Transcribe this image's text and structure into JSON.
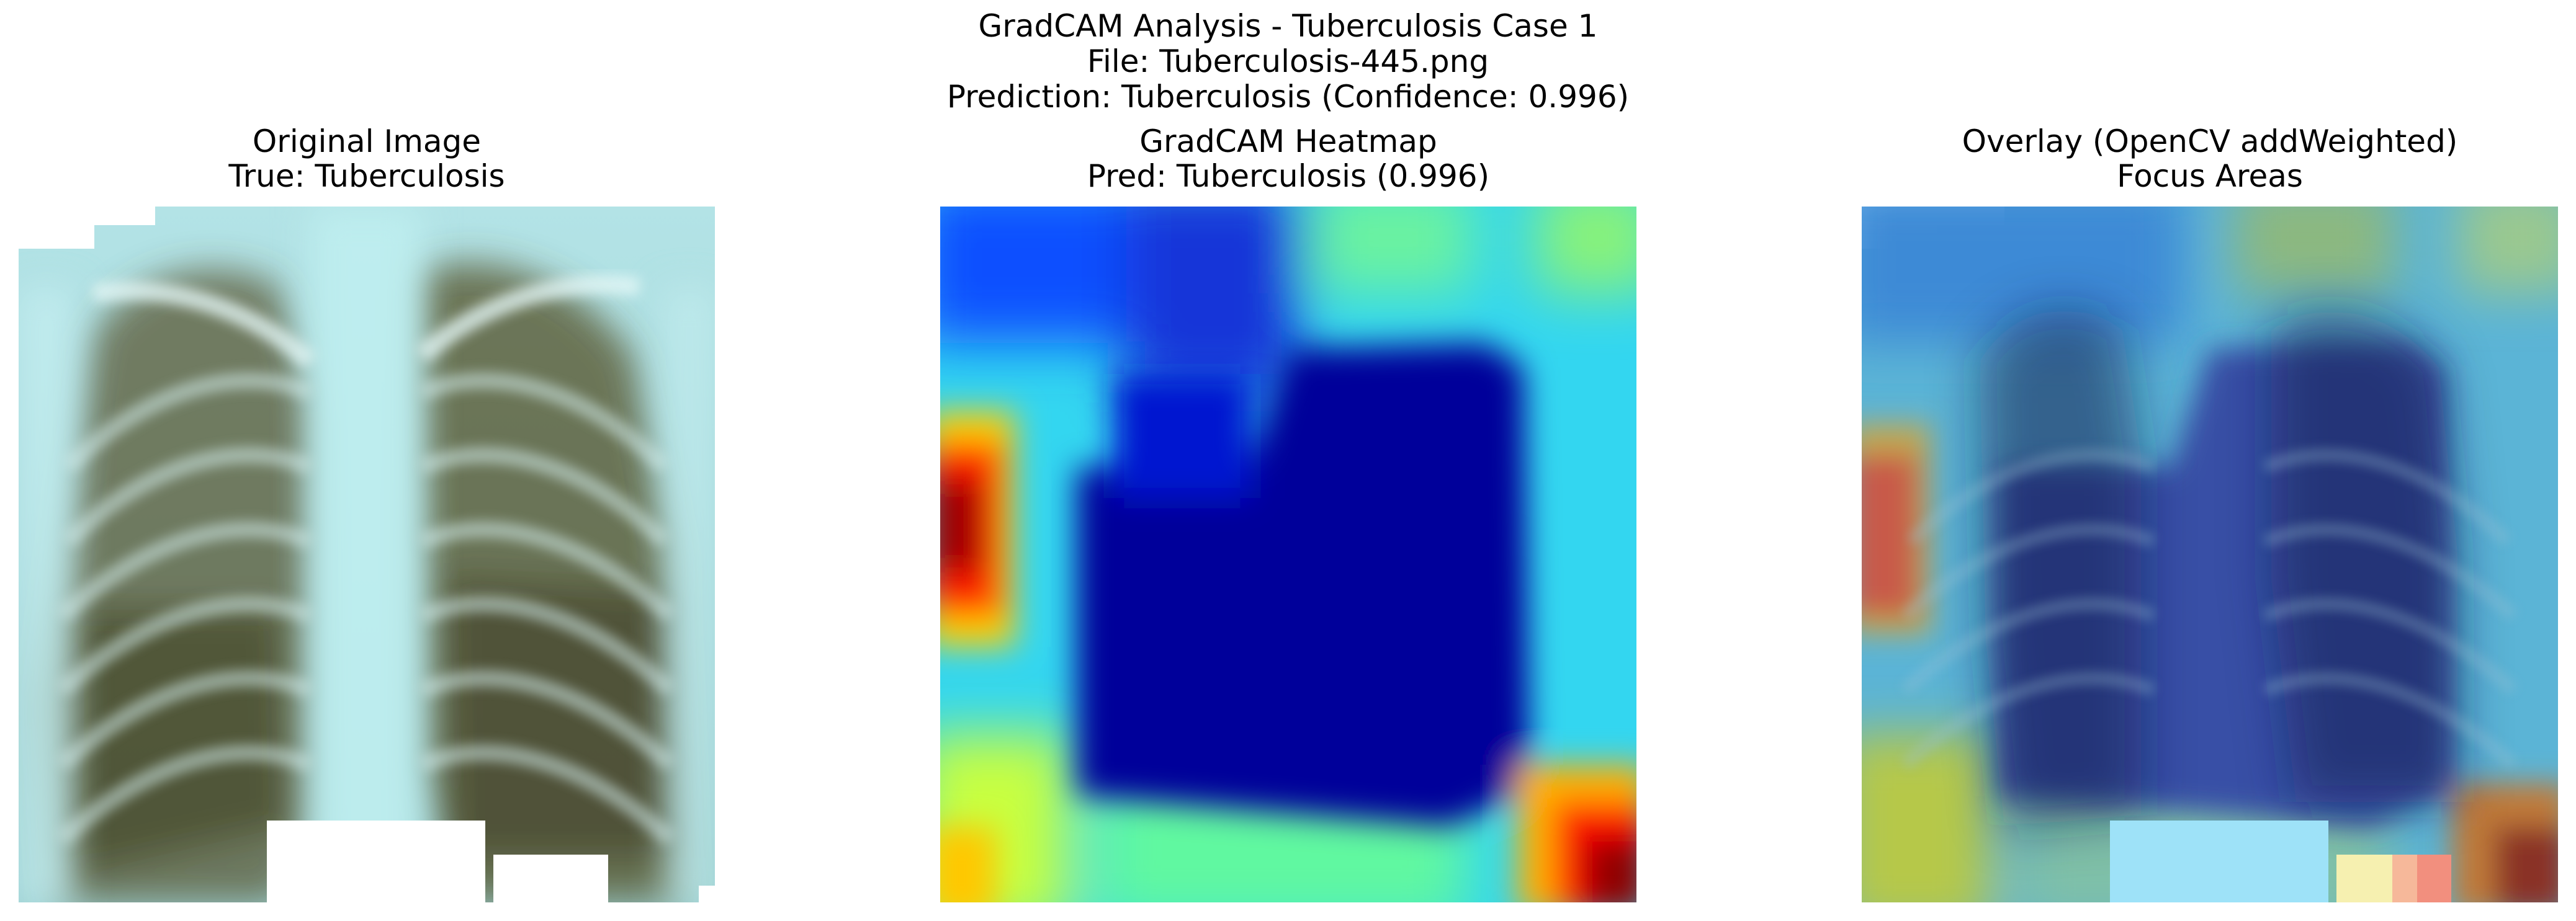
{
  "figure": {
    "title_lines": [
      "GradCAM Analysis - Tuberculosis Case 1",
      "File: Tuberculosis-445.png",
      "Prediction: Tuberculosis (Confidence: 0.996)"
    ]
  },
  "panels": [
    {
      "title_line1": "Original Image",
      "title_line2": "True: Tuberculosis",
      "content": "chest x-ray with cyan tint"
    },
    {
      "title_line1": "GradCAM Heatmap",
      "title_line2": "Pred: Tuberculosis (0.996)",
      "content": "jet colormap heatmap"
    },
    {
      "title_line1": "Overlay (OpenCV addWeighted)",
      "title_line2": "Focus Areas",
      "content": "heatmap blended over x-ray"
    }
  ],
  "colors": {
    "xray_base": "#a8dde2",
    "xray_dark": "#3c3a1e",
    "heatmap_low": "#000096",
    "heatmap_mid": "#00c8ff",
    "heatmap_high": "#ff0000"
  }
}
